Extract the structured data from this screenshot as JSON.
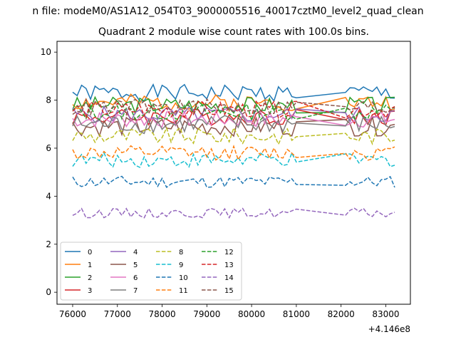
{
  "figure": {
    "suptitle": "n file: modeM0/AS1A12_054T03_9000005516_40017cztM0_level2_quad_clean",
    "offset_label": "+4.146e8"
  },
  "chart_data": {
    "type": "line",
    "title": "Quadrant 2 module wise count rates with 100.0s bins.",
    "xlabel": "",
    "ylabel": "",
    "x_offset": 414600000,
    "xlim": [
      75650,
      83550
    ],
    "ylim": [
      -0.5,
      10.45
    ],
    "x_ticks": [
      76000,
      77000,
      78000,
      79000,
      80000,
      81000,
      82000,
      83000
    ],
    "x_tick_labels": [
      "76000",
      "77000",
      "78000",
      "79000",
      "80000",
      "81000",
      "82000",
      "83000"
    ],
    "y_ticks": [
      0,
      2,
      4,
      6,
      8,
      10
    ],
    "y_tick_labels": [
      "0",
      "2",
      "4",
      "6",
      "8",
      "10"
    ],
    "grid": false,
    "legend_placement": "lower-left",
    "legend_columns": 4,
    "gap_start": 81050,
    "gap_end": 82100,
    "segments": [
      [
        76000,
        81050,
        100
      ],
      [
        82100,
        83200,
        100
      ]
    ],
    "series": [
      {
        "name": "0",
        "color": "#1f77b4",
        "dash": "solid",
        "level": 8.3,
        "amp": 0.35,
        "seed": 1
      },
      {
        "name": "1",
        "color": "#ff7f0e",
        "dash": "solid",
        "level": 7.9,
        "amp": 0.35,
        "seed": 2
      },
      {
        "name": "2",
        "color": "#2ca02c",
        "dash": "solid",
        "level": 7.8,
        "amp": 0.35,
        "seed": 3
      },
      {
        "name": "3",
        "color": "#d62728",
        "dash": "solid",
        "level": 7.3,
        "amp": 0.35,
        "seed": 4
      },
      {
        "name": "4",
        "color": "#9467bd",
        "dash": "solid",
        "level": 7.4,
        "amp": 0.35,
        "seed": 5
      },
      {
        "name": "5",
        "color": "#8c564b",
        "dash": "solid",
        "level": 6.9,
        "amp": 0.4,
        "seed": 6
      },
      {
        "name": "6",
        "color": "#e377c2",
        "dash": "solid",
        "level": 7.2,
        "amp": 0.35,
        "seed": 7
      },
      {
        "name": "7",
        "color": "#7f7f7f",
        "dash": "solid",
        "level": 7.0,
        "amp": 0.4,
        "seed": 8
      },
      {
        "name": "8",
        "color": "#bcbd22",
        "dash": "dashed",
        "level": 6.5,
        "amp": 0.35,
        "seed": 9
      },
      {
        "name": "9",
        "color": "#17becf",
        "dash": "dashed",
        "level": 5.5,
        "amp": 0.3,
        "seed": 10
      },
      {
        "name": "10",
        "color": "#1f77b4",
        "dash": "dashed",
        "level": 4.6,
        "amp": 0.25,
        "seed": 11
      },
      {
        "name": "11",
        "color": "#ff7f0e",
        "dash": "dashed",
        "level": 5.8,
        "amp": 0.3,
        "seed": 12
      },
      {
        "name": "12",
        "color": "#2ca02c",
        "dash": "dashed",
        "level": 7.5,
        "amp": 0.35,
        "seed": 13
      },
      {
        "name": "13",
        "color": "#d62728",
        "dash": "dashed",
        "level": 7.6,
        "amp": 0.35,
        "seed": 14
      },
      {
        "name": "14",
        "color": "#9467bd",
        "dash": "dashed",
        "level": 3.3,
        "amp": 0.2,
        "seed": 15
      },
      {
        "name": "15",
        "color": "#8c564b",
        "dash": "dashed",
        "level": 7.7,
        "amp": 0.35,
        "seed": 16
      }
    ]
  }
}
